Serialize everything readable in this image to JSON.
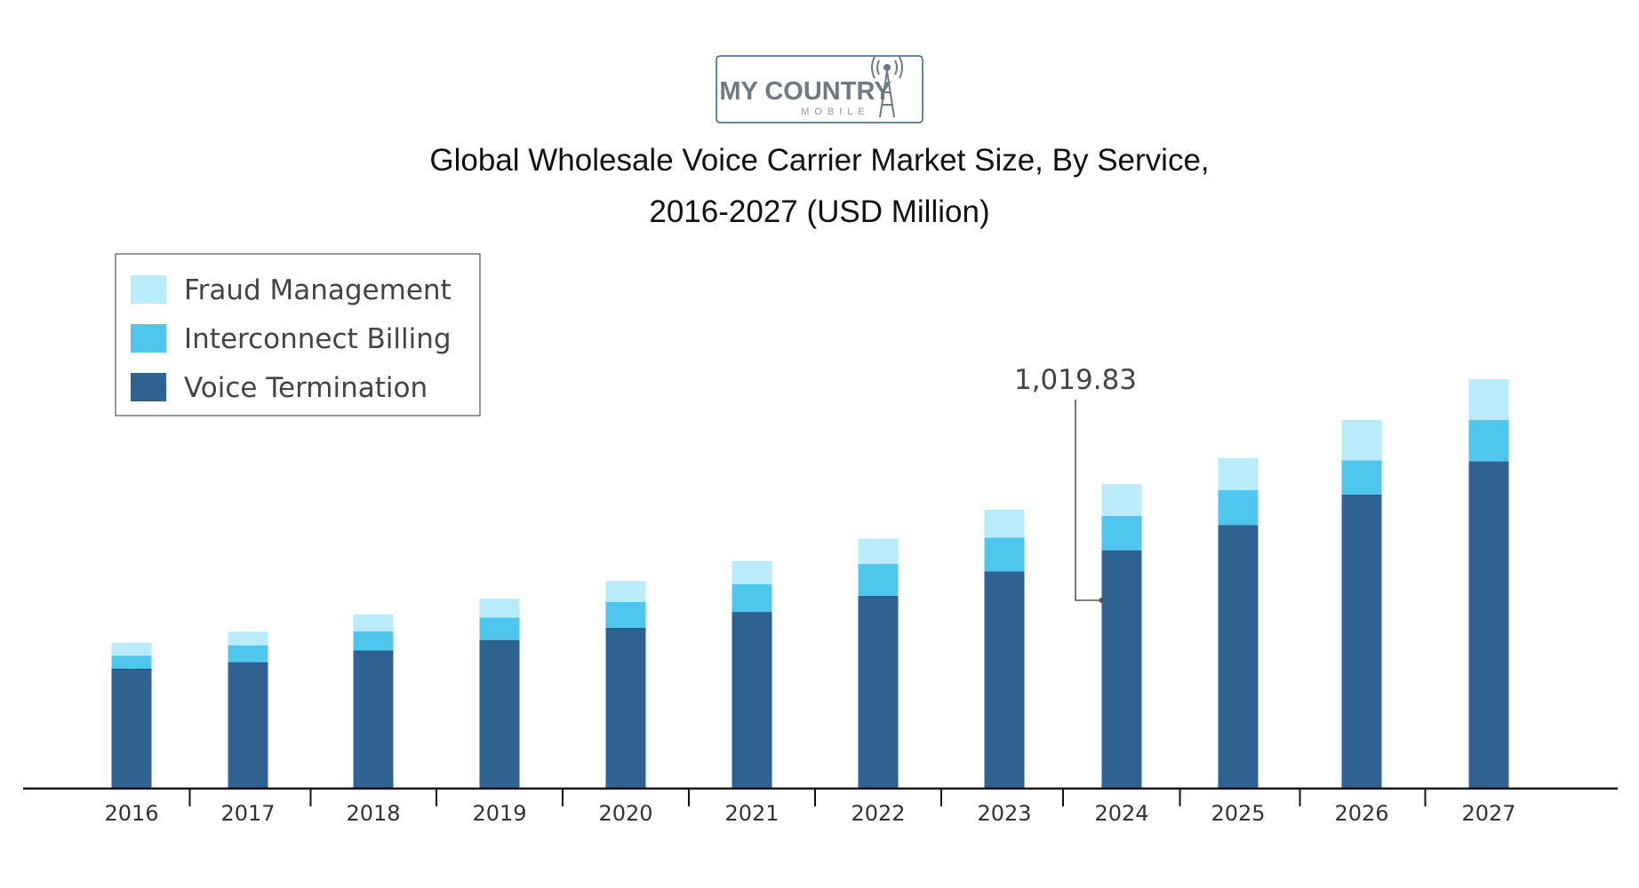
{
  "logo": {
    "text_main": "MY COUNTRY",
    "text_sub": "MOBILE",
    "icon": "radio-tower-icon"
  },
  "chart_data": {
    "type": "bar",
    "stacked": true,
    "title": "Global Wholesale Voice Carrier Market Size, By Service,",
    "subtitle": "2016-2027 (USD Million)",
    "xlabel": "",
    "ylabel": "",
    "categories": [
      "2016",
      "2017",
      "2018",
      "2019",
      "2020",
      "2021",
      "2022",
      "2023",
      "2024",
      "2025",
      "2026",
      "2027"
    ],
    "series": [
      {
        "name": "Voice Termination",
        "color": "#2e6391",
        "values": [
          513,
          541,
          591,
          636,
          688,
          756,
          825,
          930,
          1019.83,
          1128,
          1258,
          1400
        ]
      },
      {
        "name": "Interconnect Billing",
        "color": "#4ec6ee",
        "values": [
          56,
          72,
          82,
          96,
          110,
          118,
          137,
          144,
          147,
          149,
          146,
          177
        ]
      },
      {
        "name": "Fraud Management",
        "color": "#b9ebfb",
        "values": [
          56,
          58,
          73,
          80,
          90,
          99,
          108,
          119,
          136,
          137,
          174,
          175
        ]
      }
    ],
    "annotation": {
      "label": "1,019.83",
      "category": "2024",
      "series": "Voice Termination"
    },
    "ylim": [
      0,
      1900
    ],
    "grid": false,
    "legend": {
      "position": "top-left"
    },
    "colors": {
      "axis": "#111111",
      "tick_label": "#333333",
      "title": "#111111",
      "annotation": "#444444"
    }
  }
}
